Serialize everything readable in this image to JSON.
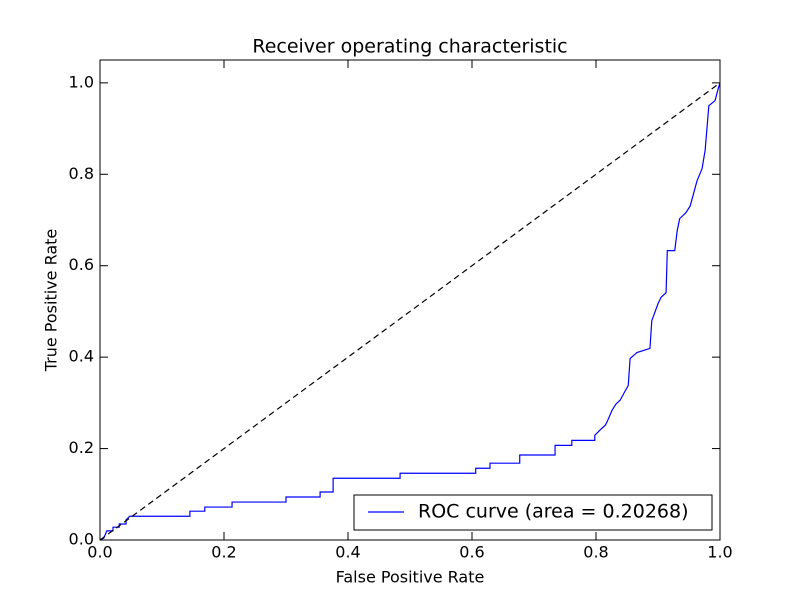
{
  "chart_data": {
    "type": "line",
    "title": "Receiver operating characteristic",
    "xlabel": "False Positive Rate",
    "ylabel": "True Positive Rate",
    "xlim": [
      0,
      1
    ],
    "ylim": [
      0,
      1.05
    ],
    "xticks": [
      {
        "value": 0,
        "label": "0.0"
      },
      0.2,
      0.4,
      0.6,
      0.8,
      {
        "value": 1,
        "label": "1.0"
      }
    ],
    "yticks": [
      {
        "value": 0,
        "label": "0.0"
      },
      0.2,
      0.4,
      0.6,
      0.8,
      {
        "value": 1,
        "label": "1.0"
      }
    ],
    "legend": "lower right",
    "series": [
      {
        "name": "ROC curve (area = 0.20268)",
        "color": "#0000ff",
        "x": [
          0,
          0.006,
          0.011,
          0.021,
          0.021,
          0.031,
          0.031,
          0.042,
          0.042,
          0.048,
          0.145,
          0.145,
          0.169,
          0.169,
          0.213,
          0.213,
          0.3,
          0.3,
          0.355,
          0.355,
          0.376,
          0.376,
          0.484,
          0.484,
          0.606,
          0.606,
          0.629,
          0.629,
          0.677,
          0.677,
          0.734,
          0.734,
          0.761,
          0.761,
          0.798,
          0.798,
          0.806,
          0.815,
          0.819,
          0.826,
          0.832,
          0.839,
          0.845,
          0.852,
          0.855,
          0.866,
          0.887,
          0.89,
          0.895,
          0.9,
          0.905,
          0.913,
          0.915,
          0.927,
          0.931,
          0.935,
          0.945,
          0.952,
          0.956,
          0.963,
          0.971,
          0.976,
          0.982,
          0.992,
          0.997,
          1
        ],
        "values": [
          0,
          0.004,
          0.02,
          0.02,
          0.028,
          0.028,
          0.035,
          0.035,
          0.044,
          0.052,
          0.052,
          0.063,
          0.063,
          0.072,
          0.072,
          0.083,
          0.083,
          0.094,
          0.094,
          0.105,
          0.105,
          0.135,
          0.135,
          0.146,
          0.146,
          0.157,
          0.157,
          0.168,
          0.168,
          0.186,
          0.186,
          0.207,
          0.207,
          0.218,
          0.218,
          0.229,
          0.24,
          0.251,
          0.262,
          0.284,
          0.297,
          0.306,
          0.321,
          0.338,
          0.397,
          0.41,
          0.419,
          0.48,
          0.498,
          0.517,
          0.531,
          0.541,
          0.633,
          0.633,
          0.677,
          0.703,
          0.716,
          0.731,
          0.751,
          0.786,
          0.812,
          0.852,
          0.95,
          0.961,
          0.987,
          1
        ]
      },
      {
        "color": "#000000",
        "dashed": true,
        "x": [
          0,
          1
        ],
        "values": [
          0,
          1
        ]
      }
    ]
  }
}
